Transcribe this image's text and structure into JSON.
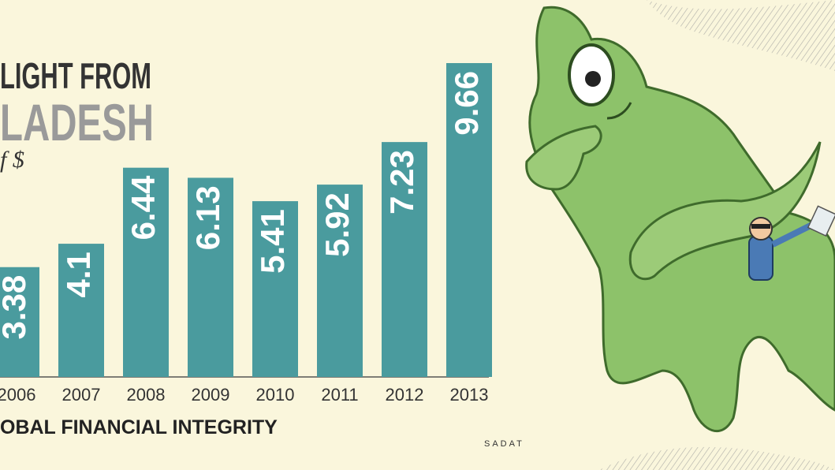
{
  "chart_data": {
    "type": "bar",
    "title": "LIGHT FROM",
    "subtitle": "LADESH",
    "unit": "f $",
    "source": "OBAL FINANCIAL INTEGRITY",
    "signature": "SADAT",
    "categories": [
      "2006",
      "2007",
      "2008",
      "2009",
      "2010",
      "2011",
      "2012",
      "2013"
    ],
    "values": [
      3.38,
      4.1,
      6.44,
      6.13,
      5.41,
      5.92,
      7.23,
      9.66
    ],
    "color": "#4a9b9e"
  }
}
